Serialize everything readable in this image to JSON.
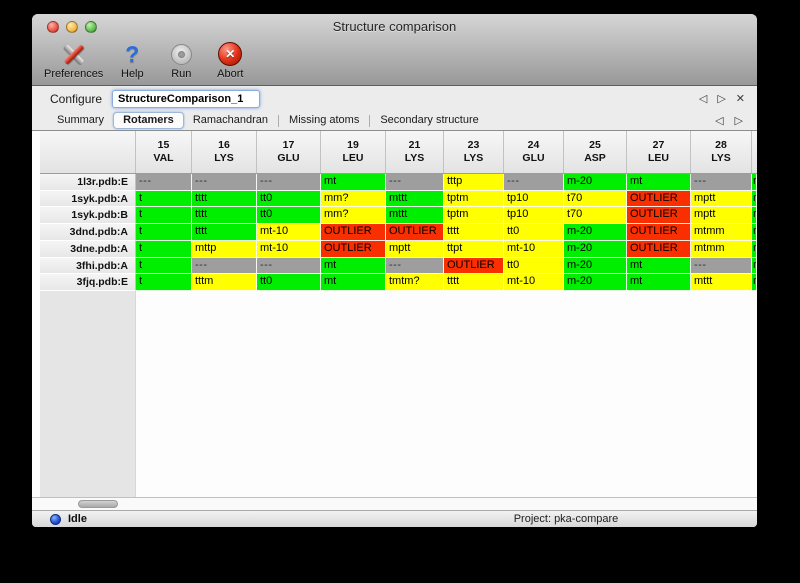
{
  "window": {
    "title": "Structure comparison"
  },
  "toolbar": {
    "buttons": [
      {
        "label": "Preferences",
        "icon": "tools-icon"
      },
      {
        "label": "Help",
        "icon": "question-icon"
      },
      {
        "label": "Run",
        "icon": "gear-icon"
      },
      {
        "label": "Abort",
        "icon": "stop-icon"
      }
    ]
  },
  "configure": {
    "label": "Configure",
    "value": "StructureComparison_1",
    "nav": [
      {
        "name": "prev",
        "glyph": "◁"
      },
      {
        "name": "next",
        "glyph": "▷"
      },
      {
        "name": "close",
        "glyph": "✕"
      }
    ]
  },
  "tabs": {
    "selected": "Rotamers",
    "items": [
      "Summary",
      "Rotamers",
      "Ramachandran",
      "Missing atoms",
      "Secondary structure"
    ],
    "nav": [
      {
        "name": "prev",
        "glyph": "◁"
      },
      {
        "name": "next",
        "glyph": "▷"
      }
    ]
  },
  "table": {
    "columns": [
      {
        "num": "15",
        "res": "VAL"
      },
      {
        "num": "16",
        "res": "LYS"
      },
      {
        "num": "17",
        "res": "GLU"
      },
      {
        "num": "19",
        "res": "LEU"
      },
      {
        "num": "21",
        "res": "LYS"
      },
      {
        "num": "23",
        "res": "LYS"
      },
      {
        "num": "24",
        "res": "GLU"
      },
      {
        "num": "25",
        "res": "ASP"
      },
      {
        "num": "27",
        "res": "LEU"
      },
      {
        "num": "28",
        "res": "LYS"
      }
    ],
    "rows": [
      {
        "label": "1l3r.pdb:E",
        "cells": [
          {
            "t": "---",
            "s": "gray"
          },
          {
            "t": "---",
            "s": "gray"
          },
          {
            "t": "---",
            "s": "gray"
          },
          {
            "t": "mt",
            "s": "green"
          },
          {
            "t": "---",
            "s": "gray"
          },
          {
            "t": "tttp",
            "s": "yellow"
          },
          {
            "t": "---",
            "s": "gray"
          },
          {
            "t": "m-20",
            "s": "green"
          },
          {
            "t": "mt",
            "s": "green"
          },
          {
            "t": "---",
            "s": "gray"
          },
          {
            "t": "m",
            "s": "green",
            "clip": true
          }
        ]
      },
      {
        "label": "1syk.pdb:A",
        "cells": [
          {
            "t": "t",
            "s": "green",
            "clip": true
          },
          {
            "t": "tttt",
            "s": "green"
          },
          {
            "t": "tt0",
            "s": "green"
          },
          {
            "t": "mm?",
            "s": "yellow"
          },
          {
            "t": "mttt",
            "s": "green"
          },
          {
            "t": "tptm",
            "s": "yellow"
          },
          {
            "t": "tp10",
            "s": "yellow"
          },
          {
            "t": "t70",
            "s": "yellow"
          },
          {
            "t": "OUTLIER",
            "s": "red"
          },
          {
            "t": "mptt",
            "s": "yellow"
          },
          {
            "t": "m",
            "s": "green",
            "clip": true
          }
        ]
      },
      {
        "label": "1syk.pdb:B",
        "cells": [
          {
            "t": "t",
            "s": "green",
            "clip": true
          },
          {
            "t": "tttt",
            "s": "green"
          },
          {
            "t": "tt0",
            "s": "green"
          },
          {
            "t": "mm?",
            "s": "yellow"
          },
          {
            "t": "mttt",
            "s": "green"
          },
          {
            "t": "tptm",
            "s": "yellow"
          },
          {
            "t": "tp10",
            "s": "yellow"
          },
          {
            "t": "t70",
            "s": "yellow"
          },
          {
            "t": "OUTLIER",
            "s": "red"
          },
          {
            "t": "mptt",
            "s": "yellow"
          },
          {
            "t": "m",
            "s": "green",
            "clip": true
          }
        ]
      },
      {
        "label": "3dnd.pdb:A",
        "cells": [
          {
            "t": "t",
            "s": "green",
            "clip": true
          },
          {
            "t": "tttt",
            "s": "green"
          },
          {
            "t": "mt-10",
            "s": "yellow"
          },
          {
            "t": "OUTLIER",
            "s": "red"
          },
          {
            "t": "OUTLIER",
            "s": "red"
          },
          {
            "t": "tttt",
            "s": "yellow"
          },
          {
            "t": "tt0",
            "s": "yellow"
          },
          {
            "t": "m-20",
            "s": "green"
          },
          {
            "t": "OUTLIER",
            "s": "red"
          },
          {
            "t": "mtmm",
            "s": "yellow"
          },
          {
            "t": "m",
            "s": "green",
            "clip": true
          }
        ]
      },
      {
        "label": "3dne.pdb:A",
        "cells": [
          {
            "t": "t",
            "s": "green",
            "clip": true
          },
          {
            "t": "mttp",
            "s": "yellow"
          },
          {
            "t": "mt-10",
            "s": "yellow"
          },
          {
            "t": "OUTLIER",
            "s": "red"
          },
          {
            "t": "mptt",
            "s": "yellow"
          },
          {
            "t": "ttpt",
            "s": "yellow"
          },
          {
            "t": "mt-10",
            "s": "yellow"
          },
          {
            "t": "m-20",
            "s": "green"
          },
          {
            "t": "OUTLIER",
            "s": "red"
          },
          {
            "t": "mtmm",
            "s": "yellow"
          },
          {
            "t": "m",
            "s": "green",
            "clip": true
          }
        ]
      },
      {
        "label": "3fhi.pdb:A",
        "cells": [
          {
            "t": "t",
            "s": "green",
            "clip": true
          },
          {
            "t": "---",
            "s": "gray"
          },
          {
            "t": "---",
            "s": "gray"
          },
          {
            "t": "mt",
            "s": "green"
          },
          {
            "t": "---",
            "s": "gray"
          },
          {
            "t": "OUTLIER",
            "s": "red"
          },
          {
            "t": "tt0",
            "s": "yellow"
          },
          {
            "t": "m-20",
            "s": "green"
          },
          {
            "t": "mt",
            "s": "green"
          },
          {
            "t": "---",
            "s": "gray"
          },
          {
            "t": "m",
            "s": "green",
            "clip": true
          }
        ]
      },
      {
        "label": "3fjq.pdb:E",
        "cells": [
          {
            "t": "t",
            "s": "green",
            "clip": true
          },
          {
            "t": "tttm",
            "s": "yellow"
          },
          {
            "t": "tt0",
            "s": "green"
          },
          {
            "t": "mt",
            "s": "green"
          },
          {
            "t": "tmtm?",
            "s": "yellow"
          },
          {
            "t": "tttt",
            "s": "yellow"
          },
          {
            "t": "mt-10",
            "s": "yellow"
          },
          {
            "t": "m-20",
            "s": "green"
          },
          {
            "t": "mt",
            "s": "green"
          },
          {
            "t": "mttt",
            "s": "yellow"
          },
          {
            "t": "m",
            "s": "green",
            "clip": true
          }
        ]
      }
    ]
  },
  "statusbar": {
    "state": "Idle",
    "project": "Project: pka-compare"
  },
  "colors": {
    "green": "#00ee00",
    "yellow": "#ffff00",
    "red": "#fa2f00",
    "gray": "#9e9e9e"
  }
}
